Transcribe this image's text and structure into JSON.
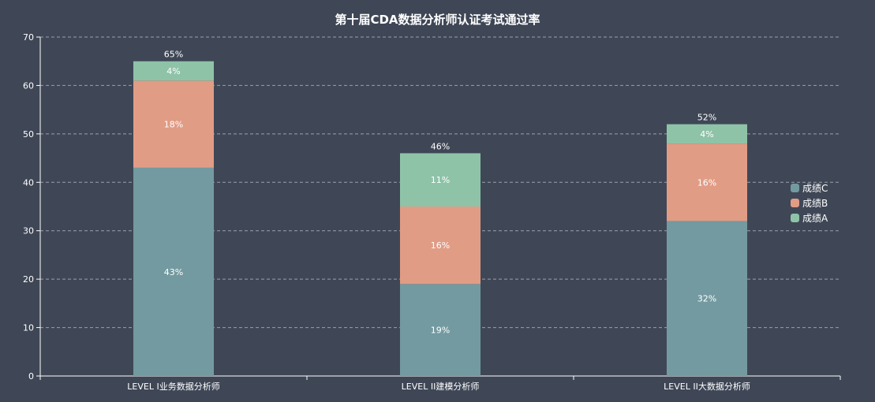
{
  "chart_data": {
    "type": "bar",
    "stacked": true,
    "title": "第十届CDA数据分析师认证考试通过率",
    "categories": [
      "LEVEL I业务数据分析师",
      "LEVEL II建模分析师",
      "LEVEL II大数据分析师"
    ],
    "series": [
      {
        "name": "成绩C",
        "values": [
          43,
          19,
          32
        ],
        "color": "#739aa0"
      },
      {
        "name": "成绩B",
        "values": [
          18,
          16,
          16
        ],
        "color": "#e19c85"
      },
      {
        "name": "成绩A",
        "values": [
          4,
          11,
          4
        ],
        "color": "#8ec3a8"
      }
    ],
    "value_labels": [
      [
        "43%",
        "19%",
        "32%"
      ],
      [
        "18%",
        "16%",
        "16%"
      ],
      [
        "4%",
        "11%",
        "4%"
      ]
    ],
    "total_labels": [
      "65%",
      "46%",
      "52%"
    ],
    "y_ticks": [
      "0",
      "10",
      "20",
      "30",
      "40",
      "50",
      "60",
      "70"
    ],
    "ylim": [
      0,
      70
    ],
    "grid": true,
    "legend_position": "right"
  },
  "colors": {
    "background": "#3f4756",
    "axis": "#ffffff",
    "grid": "#9aa0aa"
  }
}
